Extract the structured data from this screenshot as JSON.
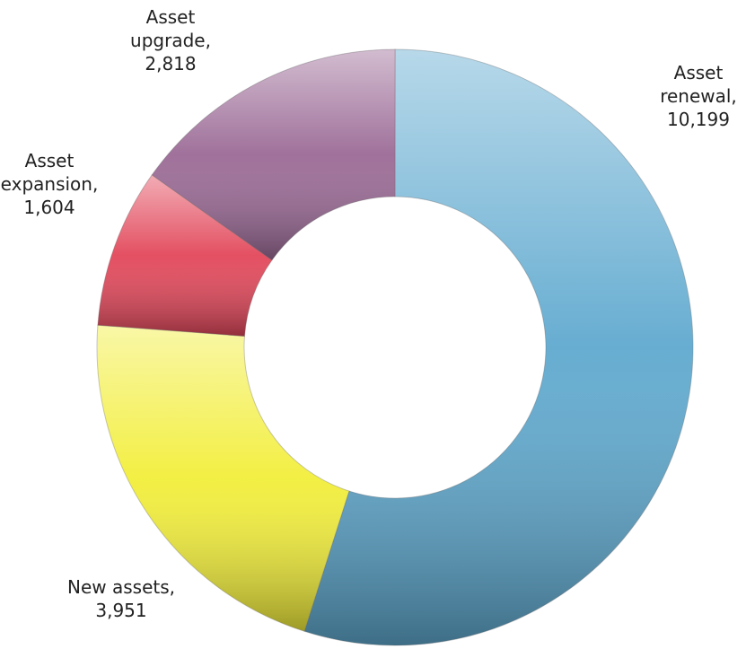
{
  "chart_data": {
    "type": "donut",
    "categories": [
      "Asset renewal,",
      "New assets,",
      "Asset expansion,",
      "Asset upgrade,"
    ],
    "values": [
      10199,
      3951,
      1604,
      2818
    ],
    "value_labels": [
      "10,199",
      "3,951",
      "1,604",
      "2,818"
    ],
    "colors": [
      "#5fa9cf",
      "#f2ee3a",
      "#e2475a",
      "#9b6a96"
    ]
  }
}
